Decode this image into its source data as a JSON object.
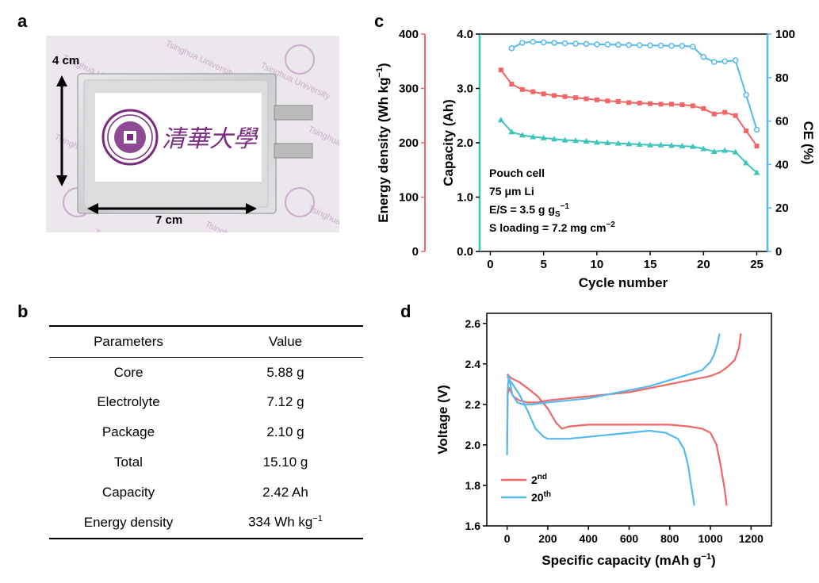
{
  "panels": {
    "a": "a",
    "b": "b",
    "c": "c",
    "d": "d"
  },
  "photo": {
    "height_label": "4 cm",
    "width_label": "7 cm",
    "logo_text": "清華大學",
    "watermark": "Tsinghua University",
    "colors": {
      "bg": "#ece7ec",
      "cell": "#d9d9db",
      "logo": "#7a2a7f",
      "tab": "#bbbbbb"
    }
  },
  "table": {
    "headers": [
      "Parameters",
      "Value"
    ],
    "rows": [
      [
        "Core",
        "5.88 g"
      ],
      [
        "Electrolyte",
        "7.12 g"
      ],
      [
        "Package",
        "2.10 g"
      ],
      [
        "Total",
        "15.10 g"
      ],
      [
        "Capacity",
        "2.42 Ah"
      ]
    ],
    "last_row": {
      "param": "Energy density",
      "value_prefix": "334 Wh kg",
      "value_sup": "−1"
    }
  },
  "chart_data": [
    {
      "type": "line",
      "panel": "c",
      "xlabel": "Cycle number",
      "ylabel_left": "Capacity (Ah)",
      "ylabel_outer_main": "Energy density (Wh kg",
      "ylabel_outer_sup": "−1",
      "ylabel_outer_close": ")",
      "ylabel_right": "CE (%)",
      "xlim": [
        -1,
        26
      ],
      "ylim_left": [
        0,
        4.0
      ],
      "ylim_outer": [
        0,
        400
      ],
      "ylim_right": [
        0,
        100
      ],
      "xticks": [
        0,
        5,
        10,
        15,
        20,
        25
      ],
      "yticks_left": [
        "0.0",
        "1.0",
        "2.0",
        "3.0",
        "4.0"
      ],
      "yticks_outer": [
        0,
        100,
        200,
        300,
        400
      ],
      "yticks_right": [
        0,
        20,
        40,
        60,
        80,
        100
      ],
      "series": [
        {
          "name": "Energy density",
          "axis": "outer",
          "color": "#f06666",
          "marker": "square",
          "x": [
            1,
            2,
            3,
            4,
            5,
            6,
            7,
            8,
            9,
            10,
            11,
            12,
            13,
            14,
            15,
            16,
            17,
            18,
            19,
            20,
            21,
            22,
            23,
            24,
            25
          ],
          "values": [
            334,
            308,
            298,
            294,
            290,
            287,
            285,
            283,
            281,
            279,
            277,
            276,
            274,
            273,
            272,
            271,
            271,
            270,
            268,
            263,
            253,
            256,
            250,
            222,
            194
          ]
        },
        {
          "name": "Capacity",
          "axis": "left",
          "color": "#3dc4bd",
          "marker": "triangle",
          "x": [
            1,
            2,
            3,
            4,
            5,
            6,
            7,
            8,
            9,
            10,
            11,
            12,
            13,
            14,
            15,
            16,
            17,
            18,
            19,
            20,
            21,
            22,
            23,
            24,
            25
          ],
          "values": [
            2.42,
            2.2,
            2.14,
            2.11,
            2.09,
            2.07,
            2.05,
            2.04,
            2.03,
            2.01,
            2.0,
            1.99,
            1.98,
            1.97,
            1.96,
            1.96,
            1.95,
            1.94,
            1.93,
            1.89,
            1.84,
            1.86,
            1.83,
            1.63,
            1.45
          ]
        },
        {
          "name": "CE",
          "axis": "right",
          "color": "#55b9eb",
          "marker": "circle",
          "x": [
            2,
            3,
            4,
            5,
            6,
            7,
            8,
            9,
            10,
            11,
            12,
            13,
            14,
            15,
            16,
            17,
            18,
            19,
            20,
            21,
            22,
            23,
            24,
            25
          ],
          "values": [
            93.5,
            96,
            96.5,
            96.2,
            96,
            95.8,
            95.6,
            95.5,
            95.3,
            95.2,
            95.1,
            95,
            94.9,
            94.8,
            94.7,
            94.6,
            94.6,
            94.2,
            89.5,
            87.2,
            87.5,
            87.9,
            72,
            56
          ]
        }
      ],
      "annotation": {
        "line1": "Pouch cell",
        "line2": "75 μm Li",
        "line3_prefix": "E/S = 3.5 g g",
        "line3_sub": "S",
        "line3_sup": "−1",
        "line4_prefix": "S loading = 7.2 mg cm",
        "line4_sup": "−2"
      },
      "colors": {
        "outer_axis": "#f06666",
        "right_axis": "#55b9eb"
      }
    },
    {
      "type": "line",
      "panel": "d",
      "xlabel_main": "Specific capacity (mAh g",
      "xlabel_sup": "−1",
      "xlabel_close": ")",
      "ylabel": "Voltage (V)",
      "xlim": [
        -100,
        1300
      ],
      "ylim": [
        1.6,
        2.65
      ],
      "xticks": [
        0,
        200,
        400,
        600,
        800,
        1000,
        1200
      ],
      "yticks": [
        "1.6",
        "1.8",
        "2.0",
        "2.2",
        "2.4",
        "2.6"
      ],
      "series": [
        {
          "name": "2nd discharge",
          "color": "#f06666",
          "x": [
            0,
            20,
            60,
            100,
            150,
            200,
            240,
            270,
            300,
            400,
            500,
            600,
            700,
            800,
            900,
            960,
            1000,
            1030,
            1050,
            1070,
            1080
          ],
          "y": [
            2.35,
            2.33,
            2.31,
            2.28,
            2.24,
            2.18,
            2.11,
            2.08,
            2.09,
            2.1,
            2.1,
            2.1,
            2.1,
            2.1,
            2.09,
            2.08,
            2.06,
            2.0,
            1.9,
            1.78,
            1.7
          ]
        },
        {
          "name": "2nd charge",
          "color": "#f06666",
          "x": [
            0,
            3,
            10,
            30,
            60,
            100,
            150,
            200,
            300,
            400,
            500,
            600,
            700,
            800,
            900,
            1000,
            1050,
            1090,
            1120,
            1140,
            1150
          ],
          "y": [
            1.99,
            2.25,
            2.28,
            2.24,
            2.22,
            2.21,
            2.21,
            2.22,
            2.23,
            2.24,
            2.25,
            2.26,
            2.28,
            2.3,
            2.32,
            2.34,
            2.36,
            2.39,
            2.42,
            2.48,
            2.55
          ]
        },
        {
          "name": "20th discharge",
          "color": "#55b9eb",
          "x": [
            0,
            20,
            60,
            100,
            140,
            180,
            200,
            260,
            300,
            400,
            500,
            600,
            700,
            780,
            840,
            870,
            890,
            905,
            915,
            920
          ],
          "y": [
            2.34,
            2.31,
            2.25,
            2.17,
            2.08,
            2.04,
            2.03,
            2.03,
            2.03,
            2.04,
            2.05,
            2.06,
            2.07,
            2.06,
            2.03,
            1.98,
            1.9,
            1.8,
            1.74,
            1.7
          ]
        },
        {
          "name": "20th charge",
          "color": "#55b9eb",
          "x": [
            0,
            2,
            8,
            25,
            50,
            80,
            120,
            200,
            300,
            400,
            500,
            600,
            700,
            800,
            900,
            960,
            1000,
            1020,
            1035,
            1045
          ],
          "y": [
            1.95,
            2.26,
            2.34,
            2.25,
            2.21,
            2.2,
            2.2,
            2.21,
            2.22,
            2.23,
            2.25,
            2.27,
            2.29,
            2.32,
            2.35,
            2.37,
            2.41,
            2.45,
            2.5,
            2.55
          ]
        }
      ],
      "legend": [
        {
          "base": "2",
          "sup": "nd",
          "color": "#f06666"
        },
        {
          "base": "20",
          "sup": "th",
          "color": "#55b9eb"
        }
      ]
    }
  ]
}
